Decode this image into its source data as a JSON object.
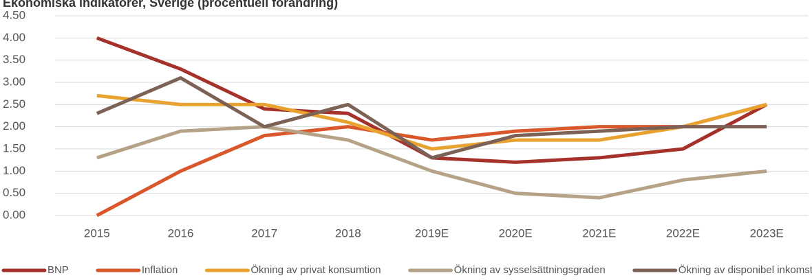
{
  "chart_data": {
    "type": "line",
    "title": "Ekonomiska indikatorer, Sverige (procentuell förändring)",
    "categories": [
      "2015",
      "2016",
      "2017",
      "2018",
      "2019E",
      "2020E",
      "2021E",
      "2022E",
      "2023E"
    ],
    "series": [
      {
        "name": "BNP",
        "color": "#a5312a",
        "values": [
          4.0,
          3.3,
          2.4,
          2.3,
          1.3,
          1.2,
          1.3,
          1.5,
          2.5
        ]
      },
      {
        "name": "Inflation",
        "color": "#d9572a",
        "values": [
          0,
          1.0,
          1.8,
          2.0,
          1.7,
          1.9,
          2.0,
          2.0,
          2.5
        ]
      },
      {
        "name": "Ökning av privat konsumtion",
        "color": "#e8a22f",
        "values": [
          2.7,
          2.5,
          2.5,
          2.1,
          1.5,
          1.7,
          1.7,
          2.0,
          2.5
        ]
      },
      {
        "name": "Ökning av sysselsättningsgraden",
        "color": "#b5a287",
        "values": [
          1.3,
          1.9,
          2.0,
          1.7,
          1.0,
          0.5,
          0.4,
          0.8,
          1.0
        ]
      },
      {
        "name": "Ökning av disponibel inkomst",
        "color": "#7c6157",
        "values": [
          2.3,
          3.1,
          2.0,
          2.5,
          1.3,
          1.8,
          1.9,
          2.0,
          2.0
        ]
      }
    ],
    "ylim": [
      0,
      4.5
    ],
    "yticks": [
      {
        "value": 0,
        "label": "0.00"
      },
      {
        "value": 0.5,
        "label": "0.50"
      },
      {
        "value": 1,
        "label": "1.00"
      },
      {
        "value": 1.5,
        "label": "1.50"
      },
      {
        "value": 2,
        "label": "2.00"
      },
      {
        "value": 2.5,
        "label": "2.50"
      },
      {
        "value": 3,
        "label": "3.00"
      },
      {
        "value": 3.5,
        "label": "3.50"
      },
      {
        "value": 4,
        "label": "4.00"
      },
      {
        "value": 4.5,
        "label": "4.50"
      }
    ],
    "grid": true,
    "legend": "bottom"
  }
}
